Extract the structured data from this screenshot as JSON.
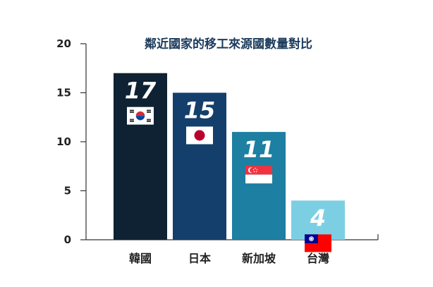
{
  "chart_data": {
    "type": "bar",
    "title": "鄰近國家的移工來源國數量對比",
    "categories": [
      "韓國",
      "日本",
      "新加坡",
      "台灣"
    ],
    "values": [
      17,
      15,
      11,
      4
    ],
    "data_labels": [
      "17",
      "15",
      "11",
      "4"
    ],
    "flags": [
      "south-korea-flag-icon",
      "japan-flag-icon",
      "singapore-flag-icon",
      "taiwan-flag-icon"
    ],
    "bar_colors": [
      "#0e2233",
      "#143f6c",
      "#1d7fa1",
      "#7ccfe3"
    ],
    "xlabel": "",
    "ylabel": "",
    "ylim": [
      0,
      20
    ],
    "yticks": [
      "0",
      "5",
      "10",
      "15",
      "20"
    ],
    "grid": false,
    "legend": "none"
  }
}
